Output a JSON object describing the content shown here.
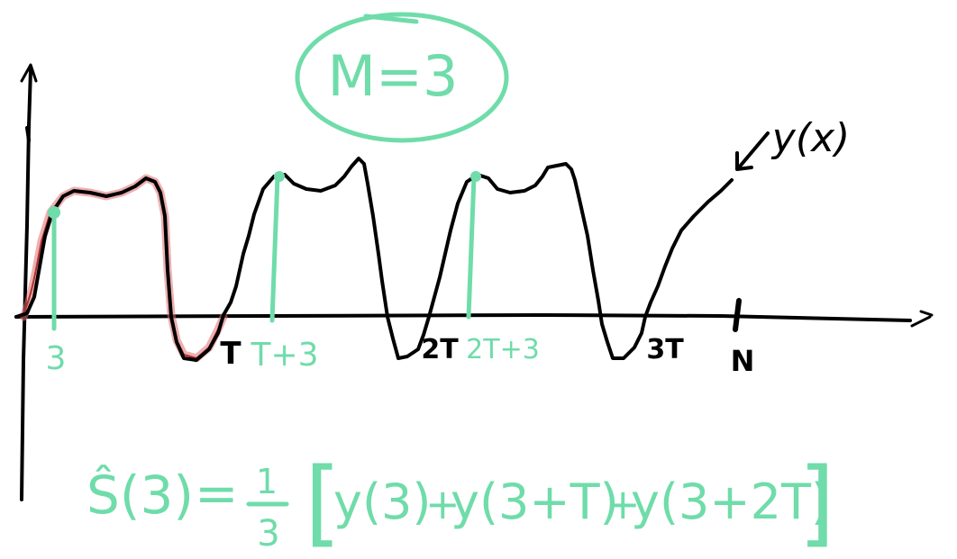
{
  "colors": {
    "black_ink": "#000000",
    "green_ink": "#6fdcaa",
    "red_highlight": "#e07070",
    "red_ink": "#b03030"
  },
  "badge": {
    "text": "M=3"
  },
  "signal_label": {
    "text": "y(x)"
  },
  "axis": {
    "x_labels": {
      "T": "T",
      "two_T": "2T",
      "three_T": "3T",
      "N": "N"
    },
    "green_labels": {
      "three": "3",
      "T_plus_3": "T+3",
      "two_T_plus_3": "2T+3"
    }
  },
  "formula": {
    "lhs": "Ŝ(3)",
    "equals": "=",
    "frac_num": "1",
    "frac_den": "3",
    "open_bracket": "[",
    "term1": "y(3)",
    "plus1": "+",
    "term2": "y(3+T)",
    "plus2": "+",
    "term3": "y(3+2T)",
    "close_bracket": "]"
  }
}
